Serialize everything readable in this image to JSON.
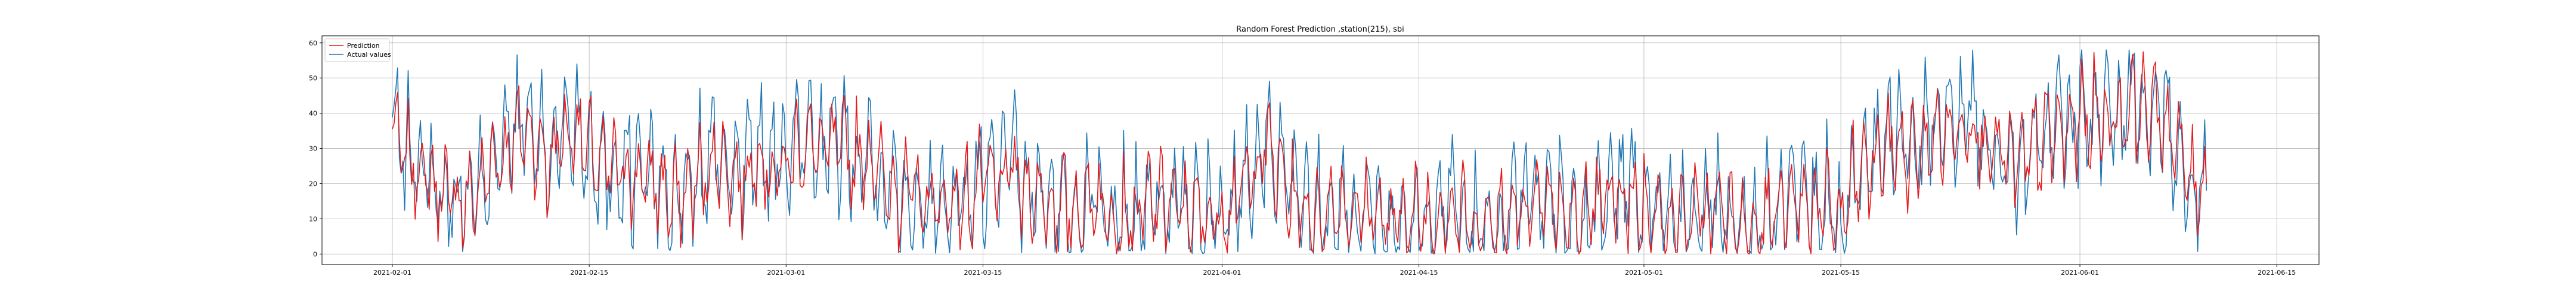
{
  "chart_data": {
    "type": "line",
    "title": "Random Forest Prediction ,station(215), sbi",
    "xlabel": "",
    "ylabel": "",
    "x_range": [
      "2021-01-27",
      "2021-06-18"
    ],
    "ylim": [
      -3,
      62
    ],
    "x_ticks": [
      "2021-02-01",
      "2021-02-15",
      "2021-03-01",
      "2021-03-15",
      "2021-04-01",
      "2021-04-15",
      "2021-05-01",
      "2021-05-15",
      "2021-06-01",
      "2021-06-15"
    ],
    "y_ticks": [
      0,
      10,
      20,
      30,
      40,
      50,
      60
    ],
    "grid": true,
    "legend": "top-left",
    "data_start": "2021-02-01",
    "data_end": "2021-06-10",
    "series": [
      {
        "name": "Prediction",
        "color": "#e41a1c",
        "points": [
          [
            "2021-02-01",
            34
          ],
          [
            "2021-02-02",
            27
          ],
          [
            "2021-02-03",
            26
          ],
          [
            "2021-02-04",
            21
          ],
          [
            "2021-02-05",
            17
          ],
          [
            "2021-02-06",
            13
          ],
          [
            "2021-02-07",
            15
          ],
          [
            "2021-02-08",
            26
          ],
          [
            "2021-02-09",
            30
          ],
          [
            "2021-02-10",
            37
          ],
          [
            "2021-02-11",
            34
          ],
          [
            "2021-02-12",
            24
          ],
          [
            "2021-02-13",
            31
          ],
          [
            "2021-02-14",
            35
          ],
          [
            "2021-02-15",
            30
          ],
          [
            "2021-02-16",
            26
          ],
          [
            "2021-02-17",
            25
          ],
          [
            "2021-02-18",
            22
          ],
          [
            "2021-02-19",
            20
          ],
          [
            "2021-02-20",
            18
          ],
          [
            "2021-02-21",
            15
          ],
          [
            "2021-02-22",
            20
          ],
          [
            "2021-02-23",
            23
          ],
          [
            "2021-02-24",
            27
          ],
          [
            "2021-02-25",
            22
          ],
          [
            "2021-02-26",
            19
          ],
          [
            "2021-02-27",
            30
          ],
          [
            "2021-02-28",
            24
          ],
          [
            "2021-03-01",
            27
          ],
          [
            "2021-03-02",
            32
          ],
          [
            "2021-03-03",
            29
          ],
          [
            "2021-03-04",
            27
          ],
          [
            "2021-03-05",
            30
          ],
          [
            "2021-03-06",
            28
          ],
          [
            "2021-03-07",
            31
          ],
          [
            "2021-03-08",
            20
          ],
          [
            "2021-03-09",
            17
          ],
          [
            "2021-03-10",
            15
          ],
          [
            "2021-03-11",
            14
          ],
          [
            "2021-03-12",
            15
          ],
          [
            "2021-03-13",
            18
          ],
          [
            "2021-03-14",
            16
          ],
          [
            "2021-03-15",
            21
          ],
          [
            "2021-03-16",
            17
          ],
          [
            "2021-03-17",
            22
          ],
          [
            "2021-03-18",
            18
          ],
          [
            "2021-03-19",
            19
          ],
          [
            "2021-03-20",
            14
          ],
          [
            "2021-03-21",
            13
          ],
          [
            "2021-03-22",
            12
          ],
          [
            "2021-03-23",
            15
          ],
          [
            "2021-03-24",
            11
          ],
          [
            "2021-03-25",
            13
          ],
          [
            "2021-03-26",
            12
          ],
          [
            "2021-03-27",
            16
          ],
          [
            "2021-03-28",
            12
          ],
          [
            "2021-03-29",
            11
          ],
          [
            "2021-03-30",
            10
          ],
          [
            "2021-03-31",
            12
          ],
          [
            "2021-04-01",
            13
          ],
          [
            "2021-04-02",
            17
          ],
          [
            "2021-04-03",
            20
          ],
          [
            "2021-04-04",
            30
          ],
          [
            "2021-04-05",
            22
          ],
          [
            "2021-04-06",
            16
          ],
          [
            "2021-04-07",
            14
          ],
          [
            "2021-04-08",
            12
          ],
          [
            "2021-04-09",
            15
          ],
          [
            "2021-04-10",
            11
          ],
          [
            "2021-04-11",
            10
          ],
          [
            "2021-04-12",
            14
          ],
          [
            "2021-04-13",
            9
          ],
          [
            "2021-04-14",
            11
          ],
          [
            "2021-04-15",
            10
          ],
          [
            "2021-04-16",
            9
          ],
          [
            "2021-04-17",
            12
          ],
          [
            "2021-04-18",
            10
          ],
          [
            "2021-04-19",
            9
          ],
          [
            "2021-04-20",
            11
          ],
          [
            "2021-04-21",
            10
          ],
          [
            "2021-04-22",
            14
          ],
          [
            "2021-04-23",
            13
          ],
          [
            "2021-04-24",
            15
          ],
          [
            "2021-04-25",
            12
          ],
          [
            "2021-04-26",
            11
          ],
          [
            "2021-04-27",
            10
          ],
          [
            "2021-04-28",
            14
          ],
          [
            "2021-04-29",
            13
          ],
          [
            "2021-04-30",
            15
          ],
          [
            "2021-05-01",
            14
          ],
          [
            "2021-05-02",
            12
          ],
          [
            "2021-05-03",
            11
          ],
          [
            "2021-05-04",
            10
          ],
          [
            "2021-05-05",
            9
          ],
          [
            "2021-05-06",
            11
          ],
          [
            "2021-05-07",
            10
          ],
          [
            "2021-05-08",
            9
          ],
          [
            "2021-05-09",
            10
          ],
          [
            "2021-05-10",
            12
          ],
          [
            "2021-05-11",
            11
          ],
          [
            "2021-05-12",
            13
          ],
          [
            "2021-05-13",
            12
          ],
          [
            "2021-05-14",
            14
          ],
          [
            "2021-05-15",
            11
          ],
          [
            "2021-05-16",
            22
          ],
          [
            "2021-05-17",
            24
          ],
          [
            "2021-05-18",
            27
          ],
          [
            "2021-05-19",
            30
          ],
          [
            "2021-05-20",
            28
          ],
          [
            "2021-05-21",
            33
          ],
          [
            "2021-05-22",
            36
          ],
          [
            "2021-05-23",
            34
          ],
          [
            "2021-05-24",
            37
          ],
          [
            "2021-05-25",
            32
          ],
          [
            "2021-05-26",
            30
          ],
          [
            "2021-05-27",
            28
          ],
          [
            "2021-05-28",
            27
          ],
          [
            "2021-05-29",
            31
          ],
          [
            "2021-05-30",
            33
          ],
          [
            "2021-05-31",
            32
          ],
          [
            "2021-06-01",
            38
          ],
          [
            "2021-06-02",
            40
          ],
          [
            "2021-06-03",
            41
          ],
          [
            "2021-06-04",
            40
          ],
          [
            "2021-06-05",
            42
          ],
          [
            "2021-06-06",
            39
          ],
          [
            "2021-06-07",
            38
          ],
          [
            "2021-06-08",
            30
          ],
          [
            "2021-06-09",
            22
          ],
          [
            "2021-06-10",
            20
          ]
        ]
      },
      {
        "name": "Actual values",
        "color": "#1f77b4",
        "points": [
          [
            "2021-02-01",
            35
          ],
          [
            "2021-02-02",
            30
          ],
          [
            "2021-02-03",
            28
          ],
          [
            "2021-02-04",
            22
          ],
          [
            "2021-02-05",
            18
          ],
          [
            "2021-02-06",
            12
          ],
          [
            "2021-02-07",
            14
          ],
          [
            "2021-02-08",
            28
          ],
          [
            "2021-02-09",
            32
          ],
          [
            "2021-02-10",
            40
          ],
          [
            "2021-02-11",
            36
          ],
          [
            "2021-02-12",
            25
          ],
          [
            "2021-02-13",
            33
          ],
          [
            "2021-02-14",
            37
          ],
          [
            "2021-02-15",
            32
          ],
          [
            "2021-02-16",
            27
          ],
          [
            "2021-02-17",
            26
          ],
          [
            "2021-02-18",
            23
          ],
          [
            "2021-02-19",
            21
          ],
          [
            "2021-02-20",
            19
          ],
          [
            "2021-02-21",
            14
          ],
          [
            "2021-02-22",
            22
          ],
          [
            "2021-02-23",
            25
          ],
          [
            "2021-02-24",
            29
          ],
          [
            "2021-02-25",
            23
          ],
          [
            "2021-02-26",
            20
          ],
          [
            "2021-02-27",
            32
          ],
          [
            "2021-02-28",
            26
          ],
          [
            "2021-03-01",
            29
          ],
          [
            "2021-03-02",
            34
          ],
          [
            "2021-03-03",
            31
          ],
          [
            "2021-03-04",
            28
          ],
          [
            "2021-03-05",
            32
          ],
          [
            "2021-03-06",
            30
          ],
          [
            "2021-03-07",
            33
          ],
          [
            "2021-03-08",
            21
          ],
          [
            "2021-03-09",
            18
          ],
          [
            "2021-03-10",
            14
          ],
          [
            "2021-03-11",
            13
          ],
          [
            "2021-03-12",
            16
          ],
          [
            "2021-03-13",
            19
          ],
          [
            "2021-03-14",
            17
          ],
          [
            "2021-03-15",
            23
          ],
          [
            "2021-03-16",
            18
          ],
          [
            "2021-03-17",
            24
          ],
          [
            "2021-03-18",
            19
          ],
          [
            "2021-03-19",
            20
          ],
          [
            "2021-03-20",
            13
          ],
          [
            "2021-03-21",
            12
          ],
          [
            "2021-03-22",
            11
          ],
          [
            "2021-03-23",
            16
          ],
          [
            "2021-03-24",
            10
          ],
          [
            "2021-03-25",
            14
          ],
          [
            "2021-03-26",
            11
          ],
          [
            "2021-03-27",
            17
          ],
          [
            "2021-03-28",
            11
          ],
          [
            "2021-03-29",
            10
          ],
          [
            "2021-03-30",
            9
          ],
          [
            "2021-03-31",
            11
          ],
          [
            "2021-04-01",
            12
          ],
          [
            "2021-04-02",
            18
          ],
          [
            "2021-04-03",
            22
          ],
          [
            "2021-04-04",
            33
          ],
          [
            "2021-04-05",
            24
          ],
          [
            "2021-04-06",
            17
          ],
          [
            "2021-04-07",
            13
          ],
          [
            "2021-04-08",
            11
          ],
          [
            "2021-04-09",
            16
          ],
          [
            "2021-04-10",
            10
          ],
          [
            "2021-04-11",
            9
          ],
          [
            "2021-04-12",
            15
          ],
          [
            "2021-04-13",
            8
          ],
          [
            "2021-04-14",
            10
          ],
          [
            "2021-04-15",
            9
          ],
          [
            "2021-04-16",
            8
          ],
          [
            "2021-04-17",
            13
          ],
          [
            "2021-04-18",
            9
          ],
          [
            "2021-04-19",
            8
          ],
          [
            "2021-04-20",
            12
          ],
          [
            "2021-04-21",
            9
          ],
          [
            "2021-04-22",
            15
          ],
          [
            "2021-04-23",
            14
          ],
          [
            "2021-04-24",
            16
          ],
          [
            "2021-04-25",
            11
          ],
          [
            "2021-04-26",
            10
          ],
          [
            "2021-04-27",
            9
          ],
          [
            "2021-04-28",
            15
          ],
          [
            "2021-04-29",
            14
          ],
          [
            "2021-04-30",
            16
          ],
          [
            "2021-05-01",
            15
          ],
          [
            "2021-05-02",
            11
          ],
          [
            "2021-05-03",
            10
          ],
          [
            "2021-05-04",
            9
          ],
          [
            "2021-05-05",
            8
          ],
          [
            "2021-05-06",
            12
          ],
          [
            "2021-05-07",
            9
          ],
          [
            "2021-05-08",
            8
          ],
          [
            "2021-05-09",
            9
          ],
          [
            "2021-05-10",
            13
          ],
          [
            "2021-05-11",
            10
          ],
          [
            "2021-05-12",
            14
          ],
          [
            "2021-05-13",
            11
          ],
          [
            "2021-05-14",
            15
          ],
          [
            "2021-05-15",
            10
          ],
          [
            "2021-05-16",
            24
          ],
          [
            "2021-05-17",
            26
          ],
          [
            "2021-05-18",
            29
          ],
          [
            "2021-05-19",
            32
          ],
          [
            "2021-05-20",
            30
          ],
          [
            "2021-05-21",
            36
          ],
          [
            "2021-05-22",
            39
          ],
          [
            "2021-05-23",
            36
          ],
          [
            "2021-05-24",
            40
          ],
          [
            "2021-05-25",
            34
          ],
          [
            "2021-05-26",
            31
          ],
          [
            "2021-05-27",
            29
          ],
          [
            "2021-05-28",
            28
          ],
          [
            "2021-05-29",
            33
          ],
          [
            "2021-05-30",
            35
          ],
          [
            "2021-05-31",
            34
          ],
          [
            "2021-06-01",
            40
          ],
          [
            "2021-06-02",
            42
          ],
          [
            "2021-06-03",
            43
          ],
          [
            "2021-06-04",
            41
          ],
          [
            "2021-06-05",
            44
          ],
          [
            "2021-06-06",
            41
          ],
          [
            "2021-06-07",
            40
          ],
          [
            "2021-06-08",
            31
          ],
          [
            "2021-06-09",
            20
          ],
          [
            "2021-06-10",
            18
          ]
        ]
      }
    ]
  }
}
